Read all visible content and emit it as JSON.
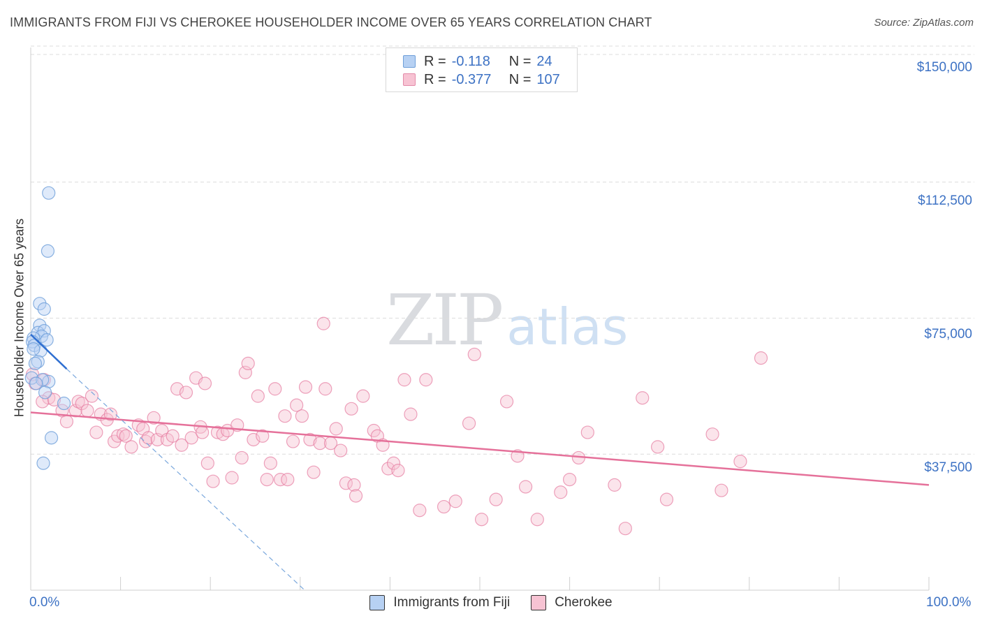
{
  "title": "IMMIGRANTS FROM FIJI VS CHEROKEE HOUSEHOLDER INCOME OVER 65 YEARS CORRELATION CHART",
  "source": "Source: ZipAtlas.com",
  "watermark": {
    "zip": "ZIP",
    "atlas": "atlas"
  },
  "legend": {
    "r_label": "R =",
    "n_label": "N =",
    "rows": [
      {
        "r": "-0.118",
        "n": "24"
      },
      {
        "r": "-0.377",
        "n": "107"
      }
    ]
  },
  "colors": {
    "fiji": "#6e9fd9",
    "fiji_fill": "#b7d1f3",
    "cherokee": "#e57ba0",
    "cherokee_fill": "#f7c3d3",
    "axis_label": "#3d72c4"
  },
  "chart_data": {
    "type": "scatter",
    "title": "IMMIGRANTS FROM FIJI VS CHEROKEE HOUSEHOLDER INCOME OVER 65 YEARS CORRELATION CHART",
    "xlabel": "",
    "ylabel": "Householder Income Over 65 years",
    "xlim": [
      0,
      100
    ],
    "ylim": [
      0,
      155000
    ],
    "x_tick_labels": [
      "0.0%",
      "100.0%"
    ],
    "y_ticks": [
      37500,
      75000,
      112500,
      150000
    ],
    "y_tick_labels": [
      "$37,500",
      "$75,000",
      "$112,500",
      "$150,000"
    ],
    "series": [
      {
        "name": "Immigrants from Fiji",
        "r": -0.118,
        "n": 24,
        "trend_solid": [
          [
            0,
            70500
          ],
          [
            4,
            61000
          ]
        ],
        "trend_dashed": [
          [
            4,
            61000
          ],
          [
            30.5,
            0
          ]
        ],
        "points": [
          [
            2.0,
            109500
          ],
          [
            1.9,
            93500
          ],
          [
            1.0,
            79000
          ],
          [
            1.5,
            77500
          ],
          [
            1.0,
            73000
          ],
          [
            0.8,
            71000
          ],
          [
            1.5,
            71500
          ],
          [
            1.2,
            70000
          ],
          [
            0.3,
            69500
          ],
          [
            0.2,
            68500
          ],
          [
            0.4,
            67500
          ],
          [
            1.8,
            69000
          ],
          [
            1.1,
            66000
          ],
          [
            0.3,
            66500
          ],
          [
            0.8,
            63000
          ],
          [
            0.5,
            62500
          ],
          [
            0.1,
            58500
          ],
          [
            2.0,
            57500
          ],
          [
            1.3,
            58000
          ],
          [
            0.6,
            57000
          ],
          [
            1.6,
            54500
          ],
          [
            3.7,
            51500
          ],
          [
            2.3,
            42000
          ],
          [
            1.4,
            35000
          ]
        ]
      },
      {
        "name": "Cherokee",
        "r": -0.377,
        "n": 107,
        "trend": [
          [
            0,
            49000
          ],
          [
            100,
            29000
          ]
        ],
        "points": [
          [
            0.2,
            59500
          ],
          [
            0.5,
            57000
          ],
          [
            1.5,
            58000
          ],
          [
            2.0,
            53000
          ],
          [
            1.3,
            52000
          ],
          [
            2.6,
            52500
          ],
          [
            3.5,
            49500
          ],
          [
            4.0,
            46500
          ],
          [
            5.0,
            49500
          ],
          [
            5.3,
            52000
          ],
          [
            5.7,
            51500
          ],
          [
            6.3,
            49500
          ],
          [
            6.8,
            53500
          ],
          [
            7.3,
            43500
          ],
          [
            7.8,
            48500
          ],
          [
            8.5,
            47000
          ],
          [
            8.9,
            48500
          ],
          [
            9.3,
            41000
          ],
          [
            9.7,
            42500
          ],
          [
            10.3,
            43000
          ],
          [
            10.6,
            42500
          ],
          [
            11.2,
            39500
          ],
          [
            12.0,
            45500
          ],
          [
            12.5,
            44500
          ],
          [
            12.8,
            41000
          ],
          [
            13.1,
            42000
          ],
          [
            13.7,
            47500
          ],
          [
            14.1,
            41500
          ],
          [
            14.6,
            44000
          ],
          [
            15.2,
            41500
          ],
          [
            15.8,
            42500
          ],
          [
            16.3,
            55500
          ],
          [
            16.8,
            40000
          ],
          [
            17.3,
            54500
          ],
          [
            17.9,
            42000
          ],
          [
            18.4,
            58500
          ],
          [
            18.9,
            45000
          ],
          [
            19.4,
            57000
          ],
          [
            19.1,
            43500
          ],
          [
            19.7,
            35000
          ],
          [
            20.3,
            30000
          ],
          [
            20.8,
            43500
          ],
          [
            21.4,
            43000
          ],
          [
            21.9,
            44000
          ],
          [
            22.4,
            31000
          ],
          [
            23.0,
            45500
          ],
          [
            23.5,
            36500
          ],
          [
            23.9,
            60000
          ],
          [
            24.2,
            62500
          ],
          [
            24.8,
            41500
          ],
          [
            25.3,
            53500
          ],
          [
            25.8,
            42500
          ],
          [
            26.3,
            30500
          ],
          [
            26.7,
            35000
          ],
          [
            27.2,
            55500
          ],
          [
            27.8,
            30500
          ],
          [
            28.3,
            48000
          ],
          [
            28.6,
            30500
          ],
          [
            29.2,
            41000
          ],
          [
            29.6,
            51000
          ],
          [
            30.2,
            48000
          ],
          [
            30.6,
            56000
          ],
          [
            31.1,
            41500
          ],
          [
            31.5,
            32500
          ],
          [
            32.2,
            40500
          ],
          [
            32.6,
            73500
          ],
          [
            32.8,
            55500
          ],
          [
            33.4,
            40500
          ],
          [
            34.0,
            44500
          ],
          [
            34.5,
            38500
          ],
          [
            35.1,
            29500
          ],
          [
            35.7,
            50000
          ],
          [
            36.0,
            29000
          ],
          [
            36.2,
            26000
          ],
          [
            37.0,
            53500
          ],
          [
            38.2,
            44000
          ],
          [
            38.6,
            42500
          ],
          [
            39.2,
            40000
          ],
          [
            39.8,
            33500
          ],
          [
            40.4,
            35000
          ],
          [
            40.9,
            33000
          ],
          [
            41.6,
            58000
          ],
          [
            42.3,
            48500
          ],
          [
            43.3,
            22000
          ],
          [
            44.0,
            58000
          ],
          [
            46.0,
            23000
          ],
          [
            47.3,
            24500
          ],
          [
            48.8,
            46000
          ],
          [
            49.4,
            65000
          ],
          [
            50.2,
            19500
          ],
          [
            51.8,
            25000
          ],
          [
            53.0,
            52000
          ],
          [
            54.2,
            37000
          ],
          [
            55.1,
            28500
          ],
          [
            56.4,
            19500
          ],
          [
            59.0,
            27000
          ],
          [
            60.0,
            30500
          ],
          [
            61.0,
            36500
          ],
          [
            62.0,
            43500
          ],
          [
            65.0,
            29000
          ],
          [
            66.2,
            17000
          ],
          [
            68.1,
            53000
          ],
          [
            69.8,
            39500
          ],
          [
            70.8,
            25000
          ],
          [
            75.9,
            43000
          ],
          [
            76.9,
            27500
          ],
          [
            79.0,
            35500
          ],
          [
            81.3,
            64000
          ]
        ]
      }
    ]
  },
  "bottom_legend": [
    "Immigrants from Fiji",
    "Cherokee"
  ]
}
